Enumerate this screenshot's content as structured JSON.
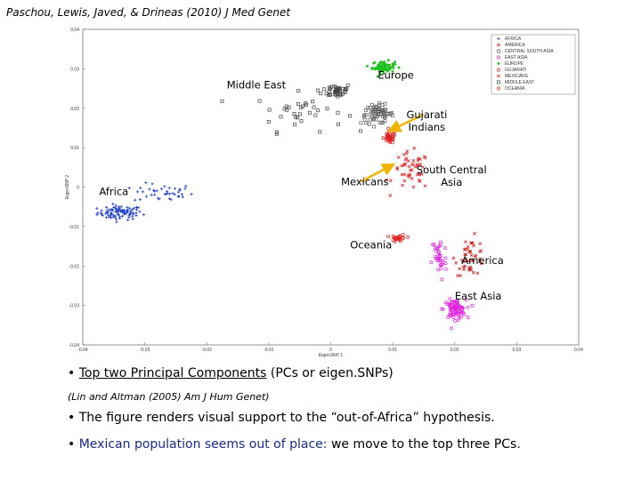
{
  "header": {
    "citation": "Paschou, Lewis, Javed, & Drineas (2010) J Med Genet"
  },
  "chart_data": {
    "type": "scatter",
    "xlabel": "EigenSNP 1",
    "ylabel": "EigenSNP 2",
    "xlim": [
      -0.04,
      0.04
    ],
    "ylim": [
      -0.04,
      0.04
    ],
    "x_ticks": [
      "-0.04",
      "-0.03",
      "-0.02",
      "-0.01",
      "0",
      "0.01",
      "0.02",
      "0.03",
      "0.04"
    ],
    "y_ticks": [
      "0.04",
      "0.03",
      "0.02",
      "0.01",
      "0",
      "-0.01",
      "-0.02",
      "-0.03",
      "-0.04"
    ],
    "legend_position": "top-right",
    "legend": [
      {
        "name": "AFRICA",
        "color": "#1e3cc8",
        "marker": "plus"
      },
      {
        "name": "AMERICA",
        "color": "#d02020",
        "marker": "x"
      },
      {
        "name": "CENTRAL SOUTH ASIA",
        "color": "#606060",
        "marker": "square"
      },
      {
        "name": "EAST ASIA",
        "color": "#e020e0",
        "marker": "circle"
      },
      {
        "name": "EUROPE",
        "color": "#20c020",
        "marker": "star"
      },
      {
        "name": "GUJARATI",
        "color": "#e02020",
        "marker": "circle"
      },
      {
        "name": "MEXICANS",
        "color": "#e02020",
        "marker": "x"
      },
      {
        "name": "MIDDLE EAST",
        "color": "#404040",
        "marker": "square"
      },
      {
        "name": "OCEANIA",
        "color": "#e02020",
        "marker": "circle"
      }
    ],
    "clusters": [
      {
        "population": "AFRICA",
        "x": -0.034,
        "y": -0.0065,
        "spread_x": 0.003,
        "spread_y": 0.0015,
        "count": 90
      },
      {
        "population": "AFRICA",
        "x": -0.027,
        "y": -0.0015,
        "spread_x": 0.004,
        "spread_y": 0.002,
        "count": 40
      },
      {
        "population": "MIDDLE EAST",
        "x": 0.001,
        "y": 0.0245,
        "spread_x": 0.002,
        "spread_y": 0.0015,
        "count": 40
      },
      {
        "population": "MIDDLE EAST",
        "x": -0.005,
        "y": 0.019,
        "spread_x": 0.006,
        "spread_y": 0.004,
        "count": 35
      },
      {
        "population": "EUROPE",
        "x": 0.0085,
        "y": 0.0305,
        "spread_x": 0.0015,
        "spread_y": 0.0012,
        "count": 80
      },
      {
        "population": "CENTRAL SOUTH ASIA",
        "x": 0.0075,
        "y": 0.0185,
        "spread_x": 0.0022,
        "spread_y": 0.002,
        "count": 70
      },
      {
        "population": "GUJARATI",
        "x": 0.0095,
        "y": 0.0125,
        "spread_x": 0.0008,
        "spread_y": 0.0012,
        "count": 40
      },
      {
        "population": "MEXICANS",
        "x": 0.013,
        "y": 0.004,
        "spread_x": 0.0025,
        "spread_y": 0.004,
        "count": 50
      },
      {
        "population": "OCEANIA",
        "x": 0.011,
        "y": -0.013,
        "spread_x": 0.001,
        "spread_y": 0.0008,
        "count": 25
      },
      {
        "population": "AMERICA",
        "x": 0.0225,
        "y": -0.0175,
        "spread_x": 0.002,
        "spread_y": 0.004,
        "count": 45
      },
      {
        "population": "EAST ASIA",
        "x": 0.02,
        "y": -0.031,
        "spread_x": 0.0015,
        "spread_y": 0.002,
        "count": 80
      },
      {
        "population": "EAST ASIA",
        "x": 0.0175,
        "y": -0.018,
        "spread_x": 0.001,
        "spread_y": 0.005,
        "count": 35
      }
    ],
    "annotations": [
      {
        "id": "europe",
        "text": [
          "Europe"
        ],
        "x": 0.0105,
        "y": 0.0275
      },
      {
        "id": "middle-east",
        "text": [
          "Middle East"
        ],
        "x": -0.012,
        "y": 0.025
      },
      {
        "id": "gujarati",
        "text": [
          "Gujarati",
          "Indians"
        ],
        "x": 0.0155,
        "y": 0.0175,
        "arrow_to": [
          0.0098,
          0.0145
        ]
      },
      {
        "id": "south-central-asia",
        "text": [
          "South Central",
          "Asia"
        ],
        "x": 0.0195,
        "y": 0.0035
      },
      {
        "id": "mexicans",
        "text": [
          "Mexicans"
        ],
        "x": 0.0055,
        "y": 0.0005,
        "arrow_to": [
          0.0098,
          0.0055
        ]
      },
      {
        "id": "africa",
        "text": [
          "Africa"
        ],
        "x": -0.035,
        "y": -0.002
      },
      {
        "id": "oceania",
        "text": [
          "Oceania"
        ],
        "x": 0.0065,
        "y": -0.0155
      },
      {
        "id": "america",
        "text": [
          "America"
        ],
        "x": 0.0245,
        "y": -0.0195
      },
      {
        "id": "east-asia",
        "text": [
          "East Asia"
        ],
        "x": 0.0238,
        "y": -0.0285
      }
    ]
  },
  "bullets": {
    "b1_prefix": "Top two Principal Components",
    "b1_suffix": " (PCs or eigen.SNPs)",
    "b2": "(Lin and Altman (2005) Am J Hum Genet)",
    "b3": "The figure renders visual support to the “out-of-Africa” hypothesis.",
    "b4_highlight": "Mexican population seems out of place:",
    "b4_rest": " we move to the top three PCs."
  }
}
